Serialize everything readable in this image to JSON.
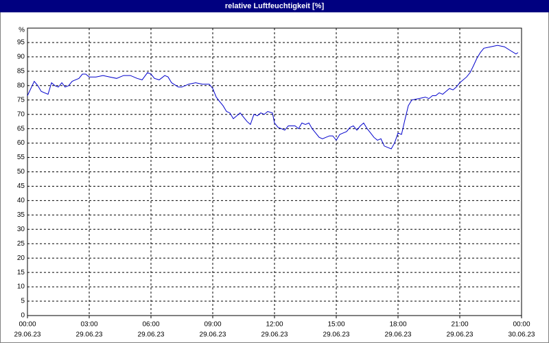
{
  "chart_data": {
    "type": "line",
    "title": "relative Luftfeuchtigkeit [%]",
    "ylabel": "%",
    "color": "#0000cc",
    "grid": true,
    "xlim": [
      0,
      24
    ],
    "ylim": [
      0,
      100
    ],
    "xticks": [
      {
        "value": 0,
        "label": "00:00",
        "date": "29.06.23"
      },
      {
        "value": 3,
        "label": "03:00",
        "date": "29.06.23"
      },
      {
        "value": 6,
        "label": "06:00",
        "date": "29.06.23"
      },
      {
        "value": 9,
        "label": "09:00",
        "date": "29.06.23"
      },
      {
        "value": 12,
        "label": "12:00",
        "date": "29.06.23"
      },
      {
        "value": 15,
        "label": "15:00",
        "date": "29.06.23"
      },
      {
        "value": 18,
        "label": "18:00",
        "date": "29.06.23"
      },
      {
        "value": 21,
        "label": "21:00",
        "date": "29.06.23"
      },
      {
        "value": 24,
        "label": "00:00",
        "date": "30.06.23"
      }
    ],
    "yticks": [
      0,
      5,
      10,
      15,
      20,
      25,
      30,
      35,
      40,
      45,
      50,
      55,
      60,
      65,
      70,
      75,
      80,
      85,
      90,
      95
    ],
    "x": [
      0,
      0.33,
      0.5,
      0.67,
      1,
      1.17,
      1.33,
      1.5,
      1.67,
      1.83,
      2,
      2.17,
      2.33,
      2.5,
      2.67,
      2.83,
      3,
      3.33,
      3.67,
      4,
      4.33,
      4.67,
      5,
      5.33,
      5.57,
      5.83,
      6,
      6.17,
      6.4,
      6.67,
      6.83,
      7,
      7.33,
      7.5,
      7.83,
      8.17,
      8.5,
      8.83,
      9,
      9.17,
      9.33,
      9.5,
      9.67,
      9.83,
      10,
      10.17,
      10.33,
      10.5,
      10.67,
      10.83,
      11,
      11.17,
      11.33,
      11.5,
      11.67,
      11.9,
      12,
      12.17,
      12.33,
      12.5,
      12.67,
      13,
      13.17,
      13.33,
      13.5,
      13.67,
      13.83,
      14,
      14.17,
      14.33,
      14.5,
      14.67,
      14.83,
      15,
      15.17,
      15.33,
      15.5,
      15.67,
      15.83,
      16,
      16.17,
      16.33,
      16.5,
      16.67,
      16.83,
      17,
      17.17,
      17.33,
      17.5,
      17.67,
      17.83,
      18,
      18.17,
      18.33,
      18.5,
      18.67,
      19,
      19.33,
      19.5,
      19.67,
      19.83,
      20,
      20.17,
      20.33,
      20.5,
      20.67,
      20.83,
      21,
      21.33,
      21.5,
      21.67,
      21.83,
      22,
      22.17,
      22.5,
      22.83,
      23.17,
      23.5,
      23.73,
      23.83
    ],
    "values": [
      76.5,
      81.5,
      80,
      78,
      77,
      81,
      80,
      79.5,
      81,
      79.5,
      80,
      81.5,
      82,
      82.5,
      84,
      84,
      83,
      83,
      83.5,
      83,
      82.5,
      83.5,
      83.5,
      82.5,
      82,
      84.5,
      84,
      82.5,
      82,
      83.5,
      83,
      81,
      79.5,
      79.5,
      80.5,
      81,
      80.5,
      80.5,
      79,
      76,
      74.5,
      73,
      71,
      70.5,
      68.5,
      69.5,
      70.5,
      69,
      67.5,
      66.5,
      70,
      69.5,
      70.5,
      70,
      71,
      70.5,
      67,
      65.5,
      65,
      64.5,
      66,
      66,
      65,
      67,
      66.5,
      67,
      65,
      63.5,
      62,
      61.5,
      62,
      62.5,
      62.5,
      61,
      63,
      63.5,
      64,
      65.5,
      66,
      64.5,
      66,
      67,
      65,
      63.5,
      62,
      61,
      61.5,
      59,
      58.5,
      58,
      60,
      63.5,
      63,
      68,
      73,
      75,
      75.5,
      76,
      75.5,
      76.5,
      76.5,
      77.5,
      77,
      78,
      79,
      78.5,
      79.5,
      81,
      83,
      84.5,
      87,
      89.5,
      91.5,
      93,
      93.5,
      94,
      93.5,
      92,
      91,
      91.5
    ]
  }
}
